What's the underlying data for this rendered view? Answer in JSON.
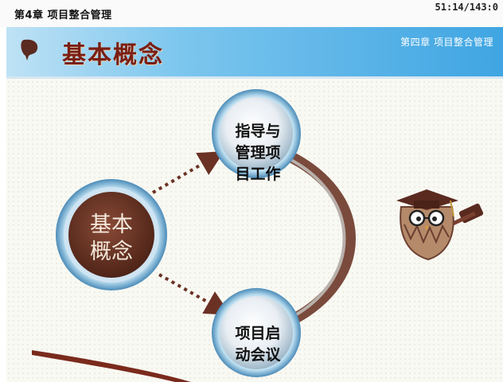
{
  "topbar": {
    "title": "第4章 项目整合管理",
    "timer": "51:14/143:0"
  },
  "slide": {
    "title": "基本概念",
    "chapter": "第四章  项目整合管理"
  },
  "diagram": {
    "main_node": {
      "line1": "基本",
      "line2": "概念"
    },
    "node_1": {
      "line1": "指导与",
      "line2": "管理项",
      "line3": "目工作"
    },
    "node_2": {
      "line1": "项目启",
      "line2": "动会议"
    }
  },
  "mascot": {
    "icon": "owl-graduate-with-gavel-icon"
  },
  "colors": {
    "header_blue": "#3fa5e2",
    "title_red": "#7a1e14",
    "main_node_brown": "#6e3a2a",
    "arrow_brown": "#6b3224"
  }
}
